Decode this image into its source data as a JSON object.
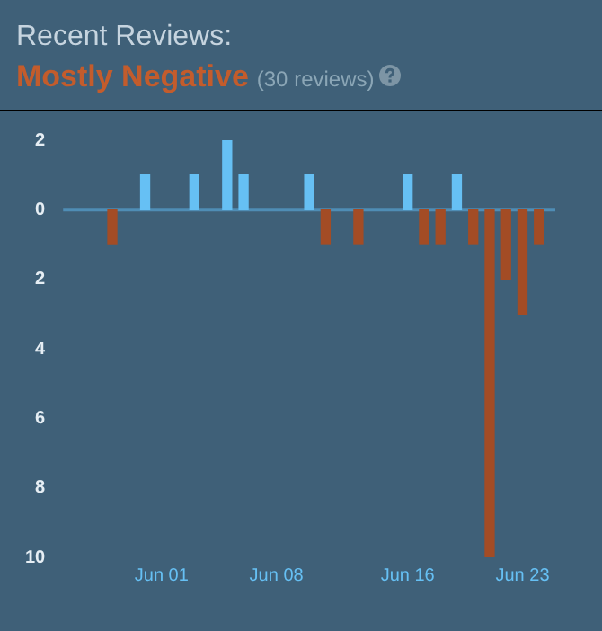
{
  "chart_data": {
    "type": "bar",
    "title": "Recent Reviews:",
    "subtitle": "Mostly Negative",
    "annotations": [
      "(30 reviews)"
    ],
    "x": [
      "--05-29",
      "--05-31",
      "--06-03",
      "--06-05",
      "--06-06",
      "--06-10",
      "--06-11",
      "--06-13",
      "--06-16",
      "--06-17",
      "--06-18",
      "--06-19",
      "--06-20",
      "--06-21",
      "--06-22",
      "--06-23",
      "--06-24"
    ],
    "values": [
      -1,
      1,
      1,
      2,
      1,
      1,
      -1,
      -1,
      1,
      -1,
      -1,
      1,
      -1,
      -10,
      -2,
      -3,
      -1
    ],
    "colors": [
      "#a34c25",
      "#66c0f4",
      "#66c0f4",
      "#66c0f4",
      "#66c0f4",
      "#66c0f4",
      "#a34c25",
      "#a34c25",
      "#66c0f4",
      "#a34c25",
      "#a34c25",
      "#66c0f4",
      "#a34c25",
      "#a34c25",
      "#a34c25",
      "#a34c25",
      "#a34c25"
    ],
    "xlim": [
      "--05-26",
      "--06-25"
    ],
    "xticks": [
      {
        "value": "--06-01",
        "label": "Jun 01"
      },
      {
        "value": "--06-08",
        "label": "Jun 08"
      },
      {
        "value": "--06-16",
        "label": "Jun 16"
      },
      {
        "value": "--06-23",
        "label": "Jun 23"
      }
    ],
    "ylim": [
      -10,
      2
    ],
    "ref_lines": [
      {
        "axis": "y",
        "value": 0,
        "color": "#4f8db5"
      }
    ],
    "yticks": [
      {
        "value": 2,
        "label": "2"
      },
      {
        "value": 0,
        "label": "0"
      },
      {
        "value": -2,
        "label": "2"
      },
      {
        "value": -4,
        "label": "4"
      },
      {
        "value": -6,
        "label": "6"
      },
      {
        "value": -8,
        "label": "8"
      },
      {
        "value": -10,
        "label": "10"
      }
    ],
    "grid": false,
    "legend": false
  }
}
